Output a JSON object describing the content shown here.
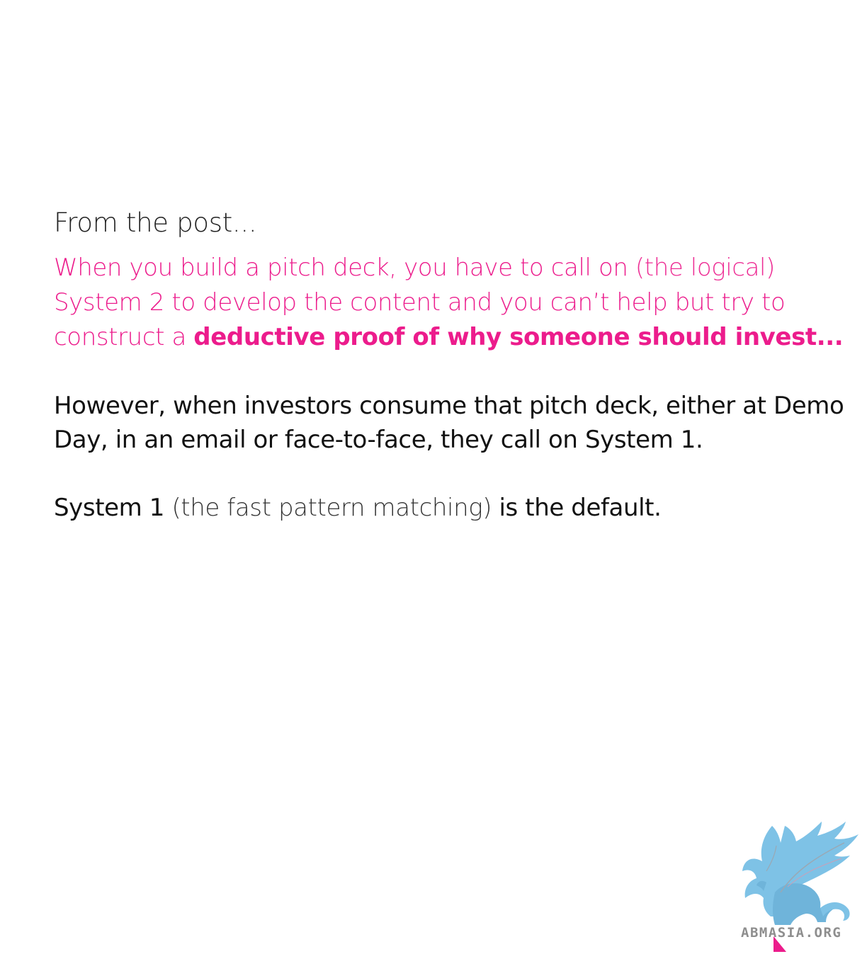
{
  "intro": "From the post...",
  "quote": {
    "part1": "When you build a pitch deck, you have to call on ",
    "aside": "(the logical)",
    "part2": " System 2 to develop the content and you can’t help but try to construct a ",
    "bold": "deductive proof of why someone should invest..."
  },
  "paragraph2": "However, when investors consume that pitch deck, either at Demo Day, in an email or face-to-face, they call on System 1.",
  "paragraph3": {
    "part1": "System 1 ",
    "aside": "(the fast pattern matching)",
    "part2": " is the default."
  },
  "logo": {
    "text": "ABMASIA.ORG",
    "icon": "griffin-logo-icon",
    "colors": {
      "wing": "#7ec2e6",
      "body": "#6fb4da",
      "accent": "#ec1c8c",
      "text": "#8e8e8e"
    }
  },
  "colors": {
    "accent": "#ec1c8c",
    "text": "#111111"
  }
}
